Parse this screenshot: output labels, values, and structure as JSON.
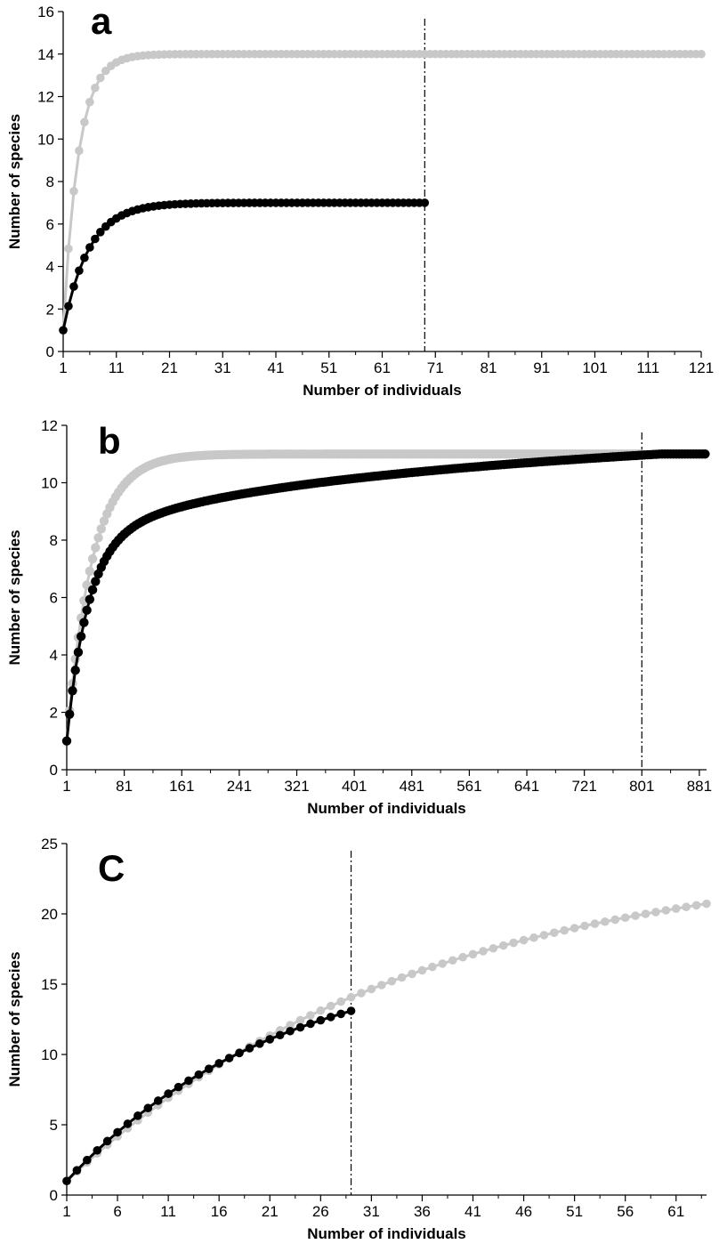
{
  "chart_data": [
    {
      "panel": "a",
      "type": "line",
      "xlabel": "Number of individuals",
      "ylabel": "Number of species",
      "xlim": [
        1,
        121
      ],
      "ylim": [
        0,
        16
      ],
      "xticks": [
        1,
        11,
        21,
        31,
        41,
        51,
        61,
        71,
        81,
        91,
        101,
        111,
        121
      ],
      "yticks": [
        0,
        2,
        4,
        6,
        8,
        10,
        12,
        14,
        16
      ],
      "reference_line_x": 69,
      "colors": {
        "gray": "#c8c8c8",
        "black": "#000000"
      },
      "series": [
        {
          "color": "gray",
          "curve": "saturating",
          "x_start": 1,
          "x_end": 121,
          "x_step": 1,
          "y_start": 1,
          "y_asymptote": 14,
          "rate": 0.35
        },
        {
          "color": "black",
          "curve": "saturating",
          "x_start": 1,
          "x_end": 69,
          "x_step": 1,
          "y_start": 1,
          "y_asymptote": 7,
          "rate": 0.21
        }
      ]
    },
    {
      "panel": "b",
      "type": "line",
      "xlabel": "Number of individuals",
      "ylabel": "Number of species",
      "xlim": [
        1,
        891
      ],
      "ylim": [
        0,
        12
      ],
      "xticks": [
        1,
        81,
        161,
        241,
        321,
        401,
        481,
        561,
        641,
        721,
        801,
        881
      ],
      "yticks": [
        0,
        2,
        4,
        6,
        8,
        10,
        12
      ],
      "reference_line_x": 801,
      "colors": {
        "gray": "#c8c8c8",
        "black": "#000000"
      },
      "series": [
        {
          "color": "gray",
          "curve": "saturating",
          "x_start": 1,
          "x_end": 801,
          "x_step": 4,
          "y_start": 1,
          "y_asymptote": 11,
          "rate": 0.028
        },
        {
          "color": "black",
          "curve": "log_then_linear",
          "x_start": 1,
          "x_end": 891,
          "x_step": 4,
          "y_start": 1,
          "y_end": 11
        }
      ]
    },
    {
      "panel": "C",
      "type": "line",
      "xlabel": "Number of individuals",
      "ylabel": "Number of species",
      "xlim": [
        1,
        64
      ],
      "ylim": [
        0,
        25
      ],
      "xticks": [
        1,
        6,
        11,
        16,
        21,
        26,
        31,
        36,
        41,
        46,
        51,
        56,
        61
      ],
      "yticks": [
        0,
        5,
        10,
        15,
        20,
        25
      ],
      "reference_line_x": 29,
      "colors": {
        "gray": "#c8c8c8",
        "black": "#000000"
      },
      "series": [
        {
          "color": "gray",
          "curve": "saturating",
          "x_start": 1,
          "x_end": 64,
          "x_step": 1,
          "y_start": 1,
          "y_asymptote": 24.5,
          "rate": 0.029
        },
        {
          "color": "black",
          "curve": "saturating",
          "x_start": 1,
          "x_end": 29,
          "x_step": 1,
          "y_start": 1,
          "y_asymptote": 17.5,
          "rate": 0.0472
        }
      ]
    }
  ]
}
